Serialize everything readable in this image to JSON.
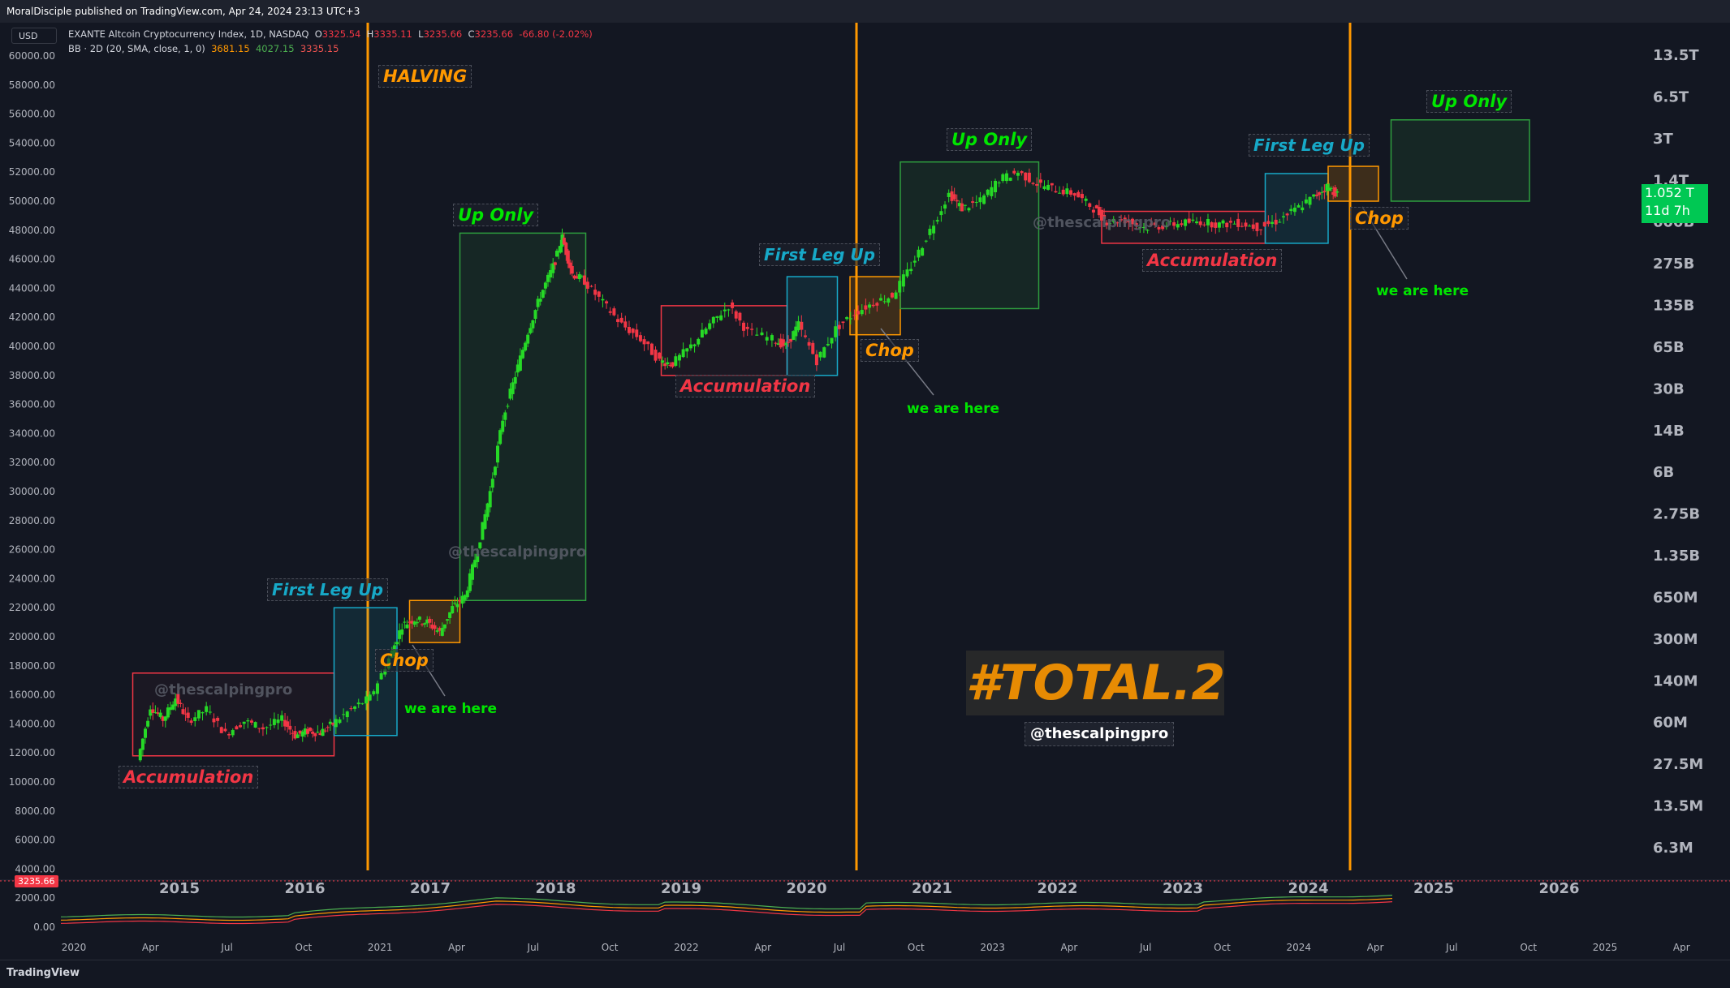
{
  "publisher_bar": "MoralDisciple published on TradingView.com, Apr 24, 2024 23:13 UTC+3",
  "footer_logo": "TradingView",
  "currency_selector": "USD",
  "legend": {
    "symbol": "EXANTE Altcoin Cryptocurrency Index, 1D, NASDAQ",
    "o_label": "O",
    "o_value": "3325.54",
    "h_label": "H",
    "h_value": "3335.11",
    "l_label": "L",
    "l_value": "3235.66",
    "c_label": "C",
    "c_value": "3235.66",
    "change": "-66.80 (-2.02%)",
    "bb_label": "BB · 2D (20, SMA, close, 1, 0)",
    "bb_basis": "3681.15",
    "bb_upper": "4027.15",
    "bb_lower": "3335.15"
  },
  "price_badge": {
    "value": "1.052 T",
    "countdown": "11d 7h"
  },
  "last_price_badge": "3235.66",
  "watermark": "@thescalpingpro",
  "hashtag": "#TOTAL.2",
  "handle": "@thescalpingpro",
  "colors": {
    "background": "#131722",
    "green": "#00e600",
    "red": "#f23645",
    "blue": "#17a9c8",
    "orange": "#ff9800",
    "candle_up": "#26d926",
    "candle_down": "#f23645"
  },
  "chart_data": {
    "type": "candlestick-annotated",
    "left_axis": {
      "ticks": [
        "60000.00",
        "58000.00",
        "56000.00",
        "54000.00",
        "52000.00",
        "50000.00",
        "48000.00",
        "46000.00",
        "44000.00",
        "42000.00",
        "40000.00",
        "38000.00",
        "36000.00",
        "34000.00",
        "32000.00",
        "30000.00",
        "28000.00",
        "26000.00",
        "24000.00",
        "22000.00",
        "20000.00",
        "18000.00",
        "16000.00",
        "14000.00",
        "12000.00",
        "10000.00",
        "8000.00",
        "6000.00",
        "4000.00",
        "2000.00",
        "0.00"
      ]
    },
    "right_axis": {
      "scale": "log",
      "ticks": [
        "13.5T",
        "6.5T",
        "3T",
        "1.4T",
        "600B",
        "275B",
        "135B",
        "65B",
        "30B",
        "14B",
        "6B",
        "2.75B",
        "1.35B",
        "650M",
        "300M",
        "140M",
        "60M",
        "27.5M",
        "13.5M",
        "6.3M"
      ]
    },
    "x_axis_main": [
      "2015",
      "2016",
      "2017",
      "2018",
      "2019",
      "2020",
      "2021",
      "2022",
      "2023",
      "2024",
      "2025",
      "2026"
    ],
    "x_axis_lower": [
      "2020",
      "Apr",
      "Jul",
      "Oct",
      "2021",
      "Apr",
      "Jul",
      "Oct",
      "2022",
      "Apr",
      "Jul",
      "Oct",
      "2023",
      "Apr",
      "Jul",
      "Oct",
      "2024",
      "Apr",
      "Jul",
      "Oct",
      "2025",
      "Apr"
    ],
    "halving_label": "HALVING",
    "halvings": [
      "2016",
      "2020",
      "2024"
    ],
    "zones": [
      {
        "label": "Accumulation",
        "kind": "accumulation",
        "start": "2014.7",
        "end": "2016.3",
        "low": 11800,
        "high": 17500
      },
      {
        "label": "First Leg Up",
        "kind": "first-leg",
        "start": "2016.3",
        "end": "2016.8",
        "low": 13200,
        "high": 22000
      },
      {
        "label": "Chop",
        "kind": "chop",
        "start": "2016.9",
        "end": "2017.3",
        "low": 19600,
        "high": 22500
      },
      {
        "label": "Up Only",
        "kind": "up-only",
        "start": "2017.3",
        "end": "2018.3",
        "low": 22500,
        "high": 47800
      },
      {
        "label": "Accumulation",
        "kind": "accumulation",
        "start": "2018.9",
        "end": "2019.9",
        "low": 38000,
        "high": 42800
      },
      {
        "label": "First Leg Up",
        "kind": "first-leg",
        "start": "2019.9",
        "end": "2020.3",
        "low": 38000,
        "high": 44800
      },
      {
        "label": "Chop",
        "kind": "chop",
        "start": "2020.4",
        "end": "2020.8",
        "low": 40800,
        "high": 44800
      },
      {
        "label": "Up Only",
        "kind": "up-only",
        "start": "2020.8",
        "end": "2021.9",
        "low": 42600,
        "high": 52700
      },
      {
        "label": "Accumulation",
        "kind": "accumulation",
        "start": "2022.4",
        "end": "2023.7",
        "low": 47100,
        "high": 49300
      },
      {
        "label": "First Leg Up",
        "kind": "first-leg",
        "start": "2023.7",
        "end": "2024.2",
        "low": 47100,
        "high": 51900
      },
      {
        "label": "Chop",
        "kind": "chop",
        "start": "2024.2",
        "end": "2024.6",
        "low": 50000,
        "high": 52400
      },
      {
        "label": "Up Only",
        "kind": "up-only",
        "start": "2024.7",
        "end": "2025.8",
        "low": 50000,
        "high": 55600
      }
    ],
    "we_are_here_label": "we are here",
    "price_path": [
      [
        2014.75,
        11500
      ],
      [
        2014.85,
        15200
      ],
      [
        2014.95,
        14300
      ],
      [
        2015.05,
        15800
      ],
      [
        2015.15,
        14200
      ],
      [
        2015.3,
        15000
      ],
      [
        2015.45,
        13300
      ],
      [
        2015.6,
        14200
      ],
      [
        2015.75,
        13700
      ],
      [
        2015.9,
        14300
      ],
      [
        2016.0,
        13200
      ],
      [
        2016.1,
        13500
      ],
      [
        2016.2,
        13400
      ],
      [
        2016.3,
        14000
      ],
      [
        2016.45,
        15000
      ],
      [
        2016.6,
        15800
      ],
      [
        2016.75,
        18500
      ],
      [
        2016.85,
        20800
      ],
      [
        2016.95,
        21200
      ],
      [
        2017.05,
        21000
      ],
      [
        2017.15,
        20300
      ],
      [
        2017.25,
        22000
      ],
      [
        2017.35,
        22800
      ],
      [
        2017.45,
        26000
      ],
      [
        2017.55,
        30000
      ],
      [
        2017.65,
        35000
      ],
      [
        2017.75,
        38000
      ],
      [
        2017.85,
        41000
      ],
      [
        2017.95,
        43500
      ],
      [
        2018.05,
        45500
      ],
      [
        2018.12,
        47500
      ],
      [
        2018.2,
        45000
      ],
      [
        2018.3,
        44500
      ],
      [
        2018.45,
        43000
      ],
      [
        2018.6,
        41500
      ],
      [
        2018.75,
        40500
      ],
      [
        2018.9,
        39000
      ],
      [
        2019.0,
        38800
      ],
      [
        2019.15,
        40000
      ],
      [
        2019.3,
        41500
      ],
      [
        2019.45,
        42800
      ],
      [
        2019.6,
        41000
      ],
      [
        2019.8,
        40500
      ],
      [
        2019.9,
        40000
      ],
      [
        2020.0,
        41500
      ],
      [
        2020.15,
        39000
      ],
      [
        2020.3,
        41200
      ],
      [
        2020.45,
        42300
      ],
      [
        2020.6,
        43000
      ],
      [
        2020.75,
        43500
      ],
      [
        2020.9,
        45500
      ],
      [
        2021.05,
        48000
      ],
      [
        2021.2,
        50500
      ],
      [
        2021.3,
        49500
      ],
      [
        2021.45,
        50000
      ],
      [
        2021.6,
        51500
      ],
      [
        2021.75,
        52000
      ],
      [
        2021.9,
        51200
      ],
      [
        2022.05,
        50800
      ],
      [
        2022.2,
        50500
      ],
      [
        2022.35,
        49500
      ],
      [
        2022.45,
        48600
      ],
      [
        2022.6,
        48700
      ],
      [
        2022.75,
        48200
      ],
      [
        2022.9,
        48300
      ],
      [
        2023.05,
        48500
      ],
      [
        2023.2,
        48600
      ],
      [
        2023.35,
        48400
      ],
      [
        2023.5,
        48500
      ],
      [
        2023.65,
        48200
      ],
      [
        2023.8,
        48600
      ],
      [
        2023.95,
        49400
      ],
      [
        2024.1,
        50300
      ],
      [
        2024.2,
        51000
      ],
      [
        2024.28,
        50500
      ]
    ],
    "volume_bollinger_note": "Lower pane: price index line with Bollinger Bands (upper green, basis orange, lower red)"
  }
}
